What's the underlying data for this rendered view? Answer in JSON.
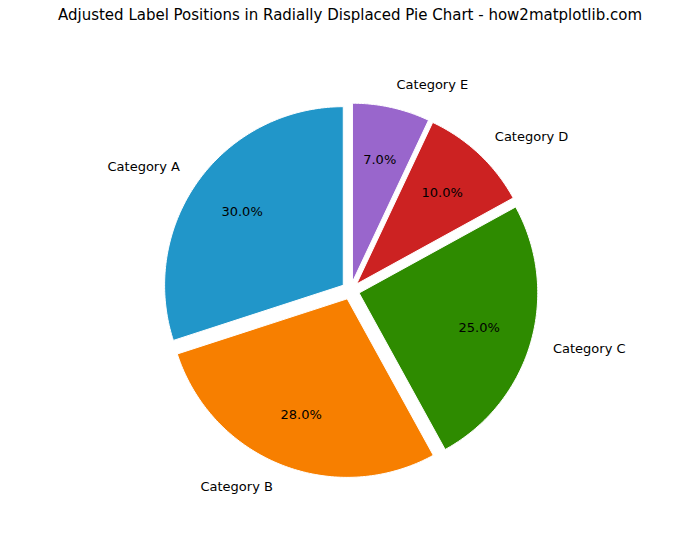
{
  "chart_data": {
    "type": "pie",
    "title": "Adjusted Label Positions in Radially Displaced Pie Chart - how2matplotlib.com",
    "categories": [
      "Category A",
      "Category B",
      "Category C",
      "Category D",
      "Category E"
    ],
    "values": [
      30.0,
      28.0,
      25.0,
      10.0,
      7.0
    ],
    "value_labels": [
      "30.0%",
      "28.0%",
      "25.0%",
      "10.0%",
      "7.0%"
    ],
    "colors": [
      "#2196C9",
      "#F77F00",
      "#2E8B00",
      "#CC2222",
      "#9966CC"
    ],
    "data_labels": true
  }
}
